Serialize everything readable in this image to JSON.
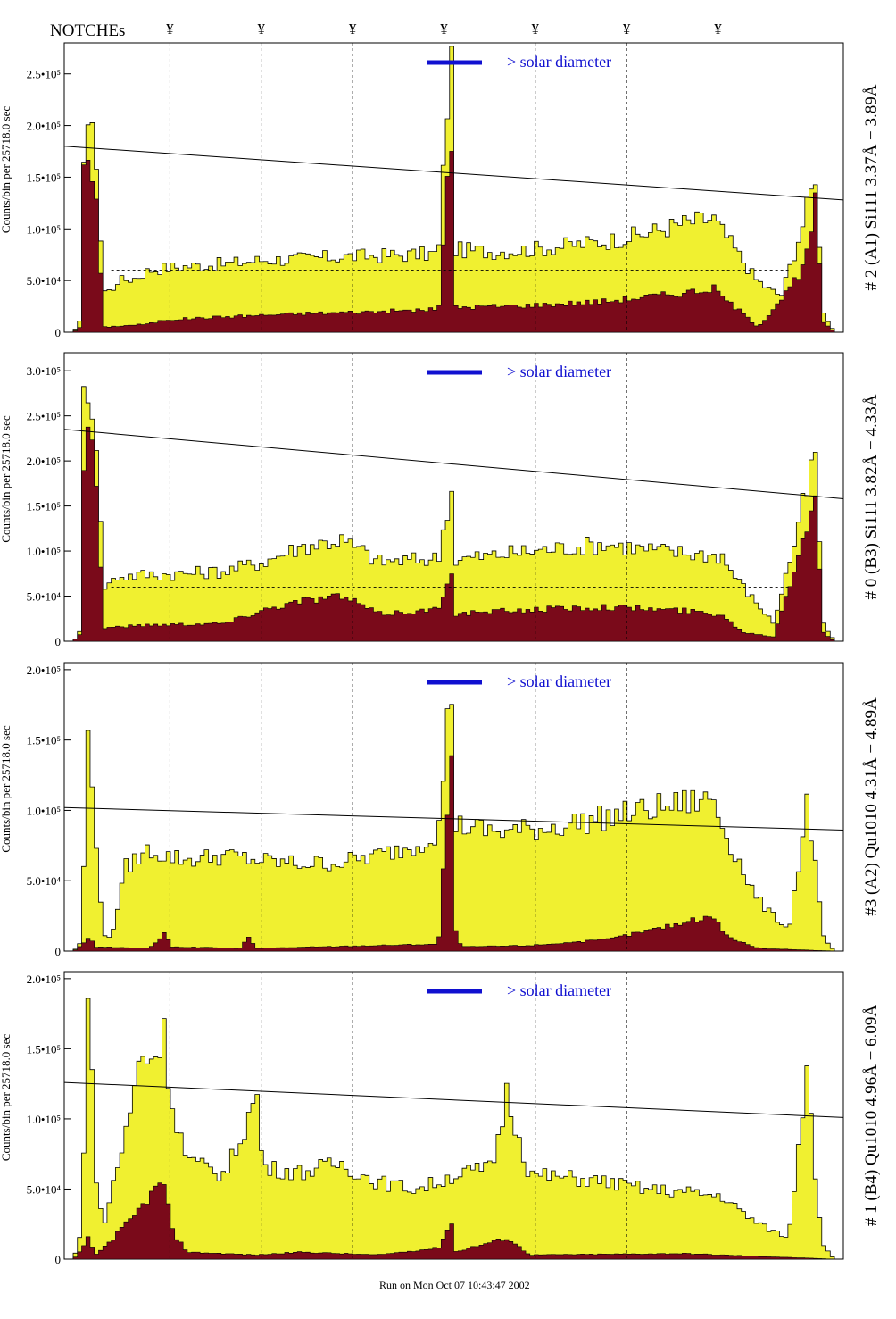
{
  "header": {
    "notches_label": "NOTCHEs",
    "notch_mark": "¥",
    "notch_positions": [
      0.12,
      0.24,
      0.36,
      0.48,
      0.6,
      0.72,
      0.84
    ],
    "footer": "Run on Mon Oct 07 10:43:47 2002"
  },
  "colors": {
    "fill": "#f0f030",
    "inner": "#7a0a1a",
    "line": "#000000",
    "annotation": "#1010d0",
    "annotation_alt": "#800080"
  },
  "chart_data": [
    {
      "type": "area",
      "right_label": "# 2 (A1) Si111  3.37Å − 3.89Å",
      "ylabel": "Counts/bin per  25718.0 sec",
      "legend_text": "> solar diameter",
      "ytick_labels": [
        "0",
        "5.0•10⁴",
        "1.0•10⁵",
        "1.5•10⁵",
        "2.0•10⁵",
        "2.5•10⁵"
      ],
      "yticks": [
        0,
        50000,
        100000,
        150000,
        200000,
        250000
      ],
      "ylim": [
        0,
        280000
      ],
      "series_outer": [
        [
          0.0,
          0
        ],
        [
          0.01,
          10000
        ],
        [
          0.015,
          180000
        ],
        [
          0.02,
          205000
        ],
        [
          0.03,
          170000
        ],
        [
          0.04,
          40000
        ],
        [
          0.05,
          40000
        ],
        [
          0.06,
          50000
        ],
        [
          0.08,
          52000
        ],
        [
          0.1,
          60000
        ],
        [
          0.12,
          62000
        ],
        [
          0.15,
          64000
        ],
        [
          0.2,
          66000
        ],
        [
          0.25,
          70000
        ],
        [
          0.3,
          71000
        ],
        [
          0.35,
          73000
        ],
        [
          0.4,
          74000
        ],
        [
          0.44,
          75000
        ],
        [
          0.48,
          76000
        ],
        [
          0.495,
          262000
        ],
        [
          0.5,
          80000
        ],
        [
          0.55,
          78000
        ],
        [
          0.6,
          80000
        ],
        [
          0.65,
          84000
        ],
        [
          0.7,
          88000
        ],
        [
          0.75,
          95000
        ],
        [
          0.8,
          105000
        ],
        [
          0.84,
          110000
        ],
        [
          0.86,
          90000
        ],
        [
          0.9,
          48000
        ],
        [
          0.93,
          35000
        ],
        [
          0.965,
          120000
        ],
        [
          0.975,
          155000
        ],
        [
          0.985,
          20000
        ],
        [
          1.0,
          0
        ]
      ],
      "series_inner": [
        [
          0.0,
          0
        ],
        [
          0.01,
          5000
        ],
        [
          0.015,
          150000
        ],
        [
          0.02,
          168000
        ],
        [
          0.03,
          130000
        ],
        [
          0.04,
          5000
        ],
        [
          0.1,
          8000
        ],
        [
          0.12,
          12000
        ],
        [
          0.2,
          15000
        ],
        [
          0.3,
          18000
        ],
        [
          0.4,
          20000
        ],
        [
          0.48,
          22000
        ],
        [
          0.495,
          175000
        ],
        [
          0.5,
          24000
        ],
        [
          0.6,
          26000
        ],
        [
          0.7,
          30000
        ],
        [
          0.8,
          38000
        ],
        [
          0.84,
          42000
        ],
        [
          0.86,
          30000
        ],
        [
          0.9,
          5000
        ],
        [
          0.96,
          60000
        ],
        [
          0.975,
          125000
        ],
        [
          0.985,
          10000
        ],
        [
          1.0,
          0
        ]
      ],
      "trend_line": [
        [
          0.0,
          180000
        ],
        [
          1.0,
          128000
        ]
      ],
      "dashed_level": 60000
    },
    {
      "type": "area",
      "right_label": "# 0 (B3) Si111  3.82Å − 4.33Å",
      "ylabel": "Counts/bin per  25718.0 sec",
      "legend_text": "> solar diameter",
      "ytick_labels": [
        "0",
        "5.0•10⁴",
        "1.0•10⁵",
        "1.5•10⁵",
        "2.0•10⁵",
        "2.5•10⁵",
        "3.0•10⁵"
      ],
      "yticks": [
        0,
        50000,
        100000,
        150000,
        200000,
        250000,
        300000
      ],
      "ylim": [
        0,
        320000
      ],
      "series_outer": [
        [
          0.0,
          0
        ],
        [
          0.01,
          10000
        ],
        [
          0.015,
          270000
        ],
        [
          0.02,
          290000
        ],
        [
          0.03,
          230000
        ],
        [
          0.04,
          60000
        ],
        [
          0.06,
          72000
        ],
        [
          0.1,
          74000
        ],
        [
          0.15,
          75000
        ],
        [
          0.2,
          78000
        ],
        [
          0.25,
          88000
        ],
        [
          0.3,
          105000
        ],
        [
          0.35,
          112000
        ],
        [
          0.38,
          100000
        ],
        [
          0.4,
          88000
        ],
        [
          0.45,
          90000
        ],
        [
          0.48,
          92000
        ],
        [
          0.495,
          165000
        ],
        [
          0.5,
          90000
        ],
        [
          0.55,
          95000
        ],
        [
          0.6,
          100000
        ],
        [
          0.65,
          104000
        ],
        [
          0.7,
          108000
        ],
        [
          0.75,
          102000
        ],
        [
          0.8,
          98000
        ],
        [
          0.85,
          95000
        ],
        [
          0.88,
          60000
        ],
        [
          0.92,
          20000
        ],
        [
          0.96,
          150000
        ],
        [
          0.975,
          210000
        ],
        [
          0.985,
          20000
        ],
        [
          1.0,
          0
        ]
      ],
      "series_inner": [
        [
          0.0,
          0
        ],
        [
          0.01,
          8000
        ],
        [
          0.015,
          200000
        ],
        [
          0.02,
          250000
        ],
        [
          0.03,
          180000
        ],
        [
          0.04,
          15000
        ],
        [
          0.1,
          18000
        ],
        [
          0.2,
          20000
        ],
        [
          0.25,
          35000
        ],
        [
          0.3,
          45000
        ],
        [
          0.35,
          50000
        ],
        [
          0.38,
          40000
        ],
        [
          0.4,
          30000
        ],
        [
          0.48,
          35000
        ],
        [
          0.495,
          80000
        ],
        [
          0.5,
          30000
        ],
        [
          0.6,
          35000
        ],
        [
          0.7,
          38000
        ],
        [
          0.8,
          34000
        ],
        [
          0.85,
          30000
        ],
        [
          0.88,
          10000
        ],
        [
          0.92,
          5000
        ],
        [
          0.96,
          120000
        ],
        [
          0.975,
          160000
        ],
        [
          0.985,
          10000
        ],
        [
          1.0,
          0
        ]
      ],
      "trend_line": [
        [
          0.0,
          235000
        ],
        [
          1.0,
          158000
        ]
      ],
      "dashed_level": 60000
    },
    {
      "type": "area",
      "right_label": "#3 (A2) Qu1010  4.31Å − 4.89Å",
      "ylabel": "Counts/bin per  25718.0 sec",
      "legend_text": "> solar diameter",
      "ytick_labels": [
        "0",
        "5.0•10⁴",
        "1.0•10⁵",
        "1.5•10⁵",
        "2.0•10⁵"
      ],
      "yticks": [
        0,
        50000,
        100000,
        150000,
        200000
      ],
      "ylim": [
        0,
        205000
      ],
      "series_outer": [
        [
          0.0,
          0
        ],
        [
          0.01,
          5000
        ],
        [
          0.02,
          150000
        ],
        [
          0.03,
          80000
        ],
        [
          0.04,
          10000
        ],
        [
          0.05,
          10000
        ],
        [
          0.07,
          60000
        ],
        [
          0.1,
          72000
        ],
        [
          0.12,
          68000
        ],
        [
          0.15,
          65000
        ],
        [
          0.2,
          68000
        ],
        [
          0.25,
          64000
        ],
        [
          0.3,
          62000
        ],
        [
          0.35,
          63000
        ],
        [
          0.4,
          68000
        ],
        [
          0.45,
          75000
        ],
        [
          0.48,
          85000
        ],
        [
          0.495,
          183000
        ],
        [
          0.5,
          90000
        ],
        [
          0.55,
          85000
        ],
        [
          0.6,
          86000
        ],
        [
          0.65,
          90000
        ],
        [
          0.7,
          95000
        ],
        [
          0.75,
          100000
        ],
        [
          0.8,
          105000
        ],
        [
          0.84,
          108000
        ],
        [
          0.86,
          80000
        ],
        [
          0.9,
          35000
        ],
        [
          0.94,
          15000
        ],
        [
          0.965,
          105000
        ],
        [
          0.975,
          60000
        ],
        [
          0.985,
          10000
        ],
        [
          1.0,
          0
        ]
      ],
      "series_inner": [
        [
          0.0,
          0
        ],
        [
          0.01,
          3000
        ],
        [
          0.02,
          10000
        ],
        [
          0.03,
          3000
        ],
        [
          0.1,
          2000
        ],
        [
          0.12,
          12000
        ],
        [
          0.13,
          3000
        ],
        [
          0.22,
          2000
        ],
        [
          0.23,
          10000
        ],
        [
          0.24,
          2000
        ],
        [
          0.48,
          5000
        ],
        [
          0.495,
          130000
        ],
        [
          0.5,
          15000
        ],
        [
          0.51,
          3000
        ],
        [
          0.6,
          4000
        ],
        [
          0.7,
          8000
        ],
        [
          0.8,
          20000
        ],
        [
          0.84,
          25000
        ],
        [
          0.86,
          10000
        ],
        [
          0.9,
          2000
        ],
        [
          1.0,
          0
        ]
      ],
      "trend_line": [
        [
          0.0,
          102000
        ],
        [
          1.0,
          86000
        ]
      ],
      "dashed_level": null
    },
    {
      "type": "area",
      "right_label": "# 1 (B4) Qu1010 4.96Å − 6.09Å",
      "ylabel": "Counts/bin per  25718.0 sec",
      "legend_text": "> solar diameter",
      "ytick_labels": [
        "0",
        "5.0•10⁴",
        "1.0•10⁵",
        "1.5•10⁵",
        "2.0•10⁵"
      ],
      "yticks": [
        0,
        50000,
        100000,
        150000,
        200000
      ],
      "ylim": [
        0,
        205000
      ],
      "series_outer": [
        [
          0.0,
          0
        ],
        [
          0.01,
          15000
        ],
        [
          0.02,
          190000
        ],
        [
          0.03,
          60000
        ],
        [
          0.04,
          20000
        ],
        [
          0.05,
          50000
        ],
        [
          0.07,
          90000
        ],
        [
          0.09,
          150000
        ],
        [
          0.1,
          140000
        ],
        [
          0.12,
          160000
        ],
        [
          0.13,
          110000
        ],
        [
          0.15,
          70000
        ],
        [
          0.2,
          60000
        ],
        [
          0.24,
          115000
        ],
        [
          0.25,
          65000
        ],
        [
          0.3,
          62000
        ],
        [
          0.35,
          68000
        ],
        [
          0.4,
          55000
        ],
        [
          0.45,
          50000
        ],
        [
          0.48,
          55000
        ],
        [
          0.5,
          60000
        ],
        [
          0.55,
          65000
        ],
        [
          0.57,
          118000
        ],
        [
          0.6,
          60000
        ],
        [
          0.65,
          58000
        ],
        [
          0.7,
          55000
        ],
        [
          0.75,
          50000
        ],
        [
          0.8,
          48000
        ],
        [
          0.85,
          45000
        ],
        [
          0.9,
          25000
        ],
        [
          0.94,
          15000
        ],
        [
          0.965,
          145000
        ],
        [
          0.975,
          60000
        ],
        [
          0.985,
          10000
        ],
        [
          1.0,
          0
        ]
      ],
      "series_inner": [
        [
          0.0,
          0
        ],
        [
          0.01,
          5000
        ],
        [
          0.02,
          15000
        ],
        [
          0.03,
          3000
        ],
        [
          0.08,
          30000
        ],
        [
          0.1,
          45000
        ],
        [
          0.12,
          55000
        ],
        [
          0.13,
          20000
        ],
        [
          0.15,
          5000
        ],
        [
          0.24,
          3000
        ],
        [
          0.3,
          5000
        ],
        [
          0.4,
          3000
        ],
        [
          0.48,
          8000
        ],
        [
          0.495,
          25000
        ],
        [
          0.5,
          5000
        ],
        [
          0.57,
          15000
        ],
        [
          0.6,
          3000
        ],
        [
          0.8,
          4000
        ],
        [
          1.0,
          0
        ]
      ],
      "trend_line": [
        [
          0.0,
          126000
        ],
        [
          1.0,
          101000
        ]
      ],
      "dashed_level": null
    }
  ]
}
